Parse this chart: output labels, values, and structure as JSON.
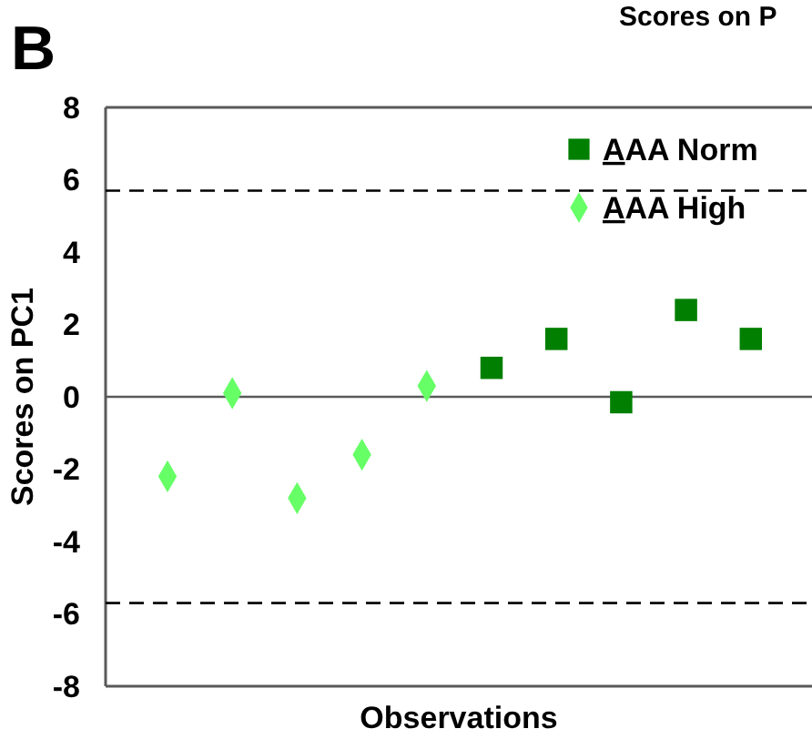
{
  "chart_data": {
    "type": "scatter",
    "title": "Scores on P",
    "annotations": [
      "B"
    ],
    "xlabel": "Observations",
    "ylabel": "Scores on PC1",
    "categories": [
      null,
      null,
      null,
      null,
      null,
      null,
      null,
      null,
      null,
      null
    ],
    "series": [
      {
        "name": "AAA Norm",
        "color": "#007f00",
        "marker": "square",
        "values": [
          null,
          null,
          null,
          null,
          null,
          0.8,
          1.6,
          -0.15,
          2.4,
          1.6
        ]
      },
      {
        "name": "AAA High",
        "color": "#66ff66",
        "marker": "diamond",
        "values": [
          -2.2,
          0.1,
          -2.8,
          -1.6,
          0.3,
          null,
          null,
          null,
          null,
          null
        ]
      }
    ],
    "ylim": [
      -8,
      8
    ],
    "yticks": [
      -8,
      -6,
      -4,
      -2,
      0,
      2,
      4,
      6,
      8
    ],
    "ref_lines": [
      {
        "axis": "y",
        "value": 5.7,
        "line_style": "dashed",
        "color": "#000000"
      },
      {
        "axis": "y",
        "value": -5.7,
        "line_style": "dashed",
        "color": "#000000"
      },
      {
        "axis": "y",
        "value": 0,
        "line_style": "solid",
        "color": "#595959"
      }
    ],
    "legend": "top right",
    "grid": false
  }
}
